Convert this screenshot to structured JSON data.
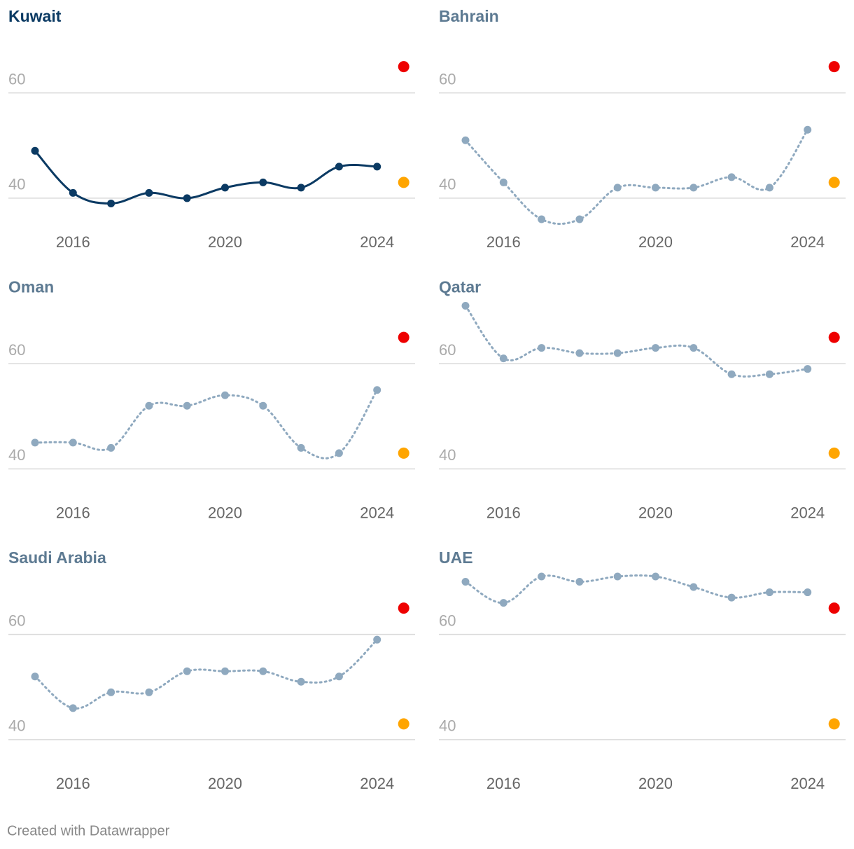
{
  "chart_data": [
    {
      "type": "line",
      "title": "Kuwait",
      "title_color": "#0b3a63",
      "color": "#0b3a63",
      "line_style": "solid",
      "x": [
        2015,
        2016,
        2017,
        2018,
        2019,
        2020,
        2021,
        2022,
        2023,
        2024
      ],
      "values": [
        49,
        41,
        39,
        41,
        40,
        42,
        43,
        42,
        46,
        46
      ],
      "xlim": [
        2014.3,
        2025
      ],
      "ylim": [
        35,
        72
      ],
      "xticks": [
        2016,
        2020,
        2024
      ],
      "yticks": [
        40,
        60
      ],
      "grid": true,
      "markers": [
        {
          "x": 2024.7,
          "value": 65,
          "color": "#ee0000"
        },
        {
          "x": 2024.7,
          "value": 43,
          "color": "#ffa500"
        }
      ]
    },
    {
      "type": "line",
      "title": "Bahrain",
      "title_color": "#5d7a92",
      "color": "#8fa9bf",
      "line_style": "dotted",
      "x": [
        2015,
        2016,
        2017,
        2018,
        2019,
        2020,
        2021,
        2022,
        2023,
        2024
      ],
      "values": [
        51,
        43,
        36,
        36,
        42,
        42,
        42,
        44,
        42,
        53
      ],
      "xlim": [
        2014.3,
        2025
      ],
      "ylim": [
        35,
        72
      ],
      "xticks": [
        2016,
        2020,
        2024
      ],
      "yticks": [
        40,
        60
      ],
      "grid": true,
      "markers": [
        {
          "x": 2024.7,
          "value": 65,
          "color": "#ee0000"
        },
        {
          "x": 2024.7,
          "value": 43,
          "color": "#ffa500"
        }
      ]
    },
    {
      "type": "line",
      "title": "Oman",
      "title_color": "#5d7a92",
      "color": "#8fa9bf",
      "line_style": "dotted",
      "x": [
        2015,
        2016,
        2017,
        2018,
        2019,
        2020,
        2021,
        2022,
        2023,
        2024
      ],
      "values": [
        45,
        45,
        44,
        52,
        52,
        54,
        52,
        44,
        43,
        55
      ],
      "xlim": [
        2014.3,
        2025
      ],
      "ylim": [
        35,
        72
      ],
      "xticks": [
        2016,
        2020,
        2024
      ],
      "yticks": [
        40,
        60
      ],
      "grid": true,
      "markers": [
        {
          "x": 2024.7,
          "value": 65,
          "color": "#ee0000"
        },
        {
          "x": 2024.7,
          "value": 43,
          "color": "#ffa500"
        }
      ]
    },
    {
      "type": "line",
      "title": "Qatar",
      "title_color": "#5d7a92",
      "color": "#8fa9bf",
      "line_style": "dotted",
      "x": [
        2015,
        2016,
        2017,
        2018,
        2019,
        2020,
        2021,
        2022,
        2023,
        2024
      ],
      "values": [
        71,
        61,
        63,
        62,
        62,
        63,
        63,
        58,
        58,
        59
      ],
      "xlim": [
        2014.3,
        2025
      ],
      "ylim": [
        35,
        72
      ],
      "xticks": [
        2016,
        2020,
        2024
      ],
      "yticks": [
        40,
        60
      ],
      "grid": true,
      "markers": [
        {
          "x": 2024.7,
          "value": 65,
          "color": "#ee0000"
        },
        {
          "x": 2024.7,
          "value": 43,
          "color": "#ffa500"
        }
      ]
    },
    {
      "type": "line",
      "title": "Saudi Arabia",
      "title_color": "#5d7a92",
      "color": "#8fa9bf",
      "line_style": "dotted",
      "x": [
        2015,
        2016,
        2017,
        2018,
        2019,
        2020,
        2021,
        2022,
        2023,
        2024
      ],
      "values": [
        52,
        46,
        49,
        49,
        53,
        53,
        53,
        51,
        52,
        59
      ],
      "xlim": [
        2014.3,
        2025
      ],
      "ylim": [
        35,
        72
      ],
      "xticks": [
        2016,
        2020,
        2024
      ],
      "yticks": [
        40,
        60
      ],
      "grid": true,
      "markers": [
        {
          "x": 2024.7,
          "value": 65,
          "color": "#ee0000"
        },
        {
          "x": 2024.7,
          "value": 43,
          "color": "#ffa500"
        }
      ]
    },
    {
      "type": "line",
      "title": "UAE",
      "title_color": "#5d7a92",
      "color": "#8fa9bf",
      "line_style": "dotted",
      "x": [
        2015,
        2016,
        2017,
        2018,
        2019,
        2020,
        2021,
        2022,
        2023,
        2024
      ],
      "values": [
        70,
        66,
        71,
        70,
        71,
        71,
        69,
        67,
        68,
        68
      ],
      "xlim": [
        2014.3,
        2025
      ],
      "ylim": [
        35,
        72
      ],
      "xticks": [
        2016,
        2020,
        2024
      ],
      "yticks": [
        40,
        60
      ],
      "grid": true,
      "markers": [
        {
          "x": 2024.7,
          "value": 65,
          "color": "#ee0000"
        },
        {
          "x": 2024.7,
          "value": 43,
          "color": "#ffa500"
        }
      ]
    }
  ],
  "footer": "Created with Datawrapper"
}
